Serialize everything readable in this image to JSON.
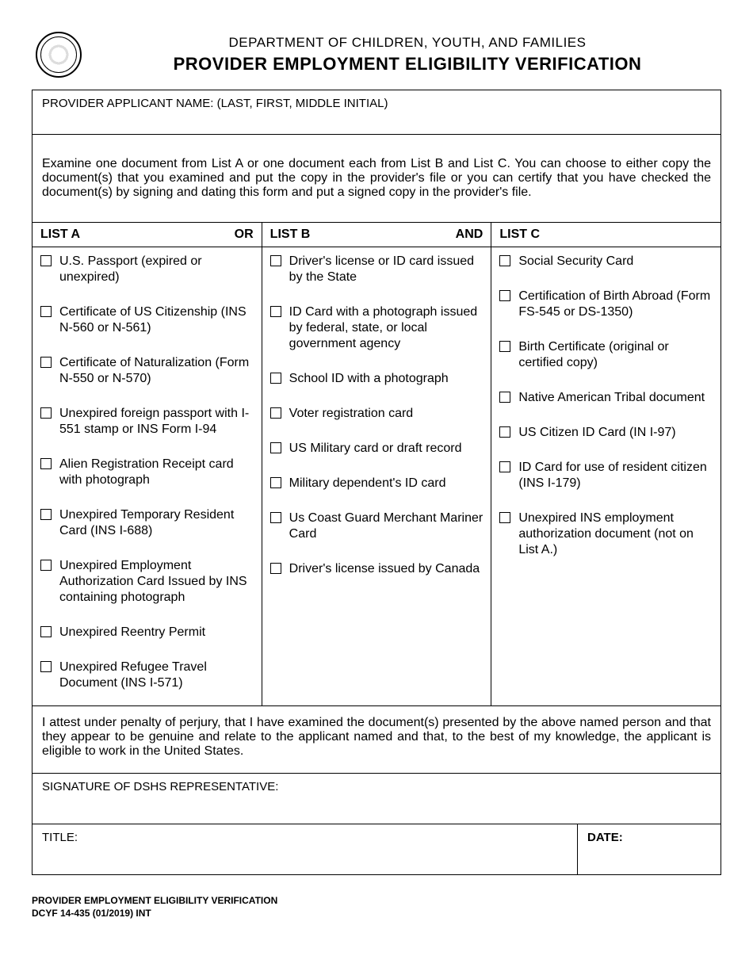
{
  "header": {
    "department": "DEPARTMENT OF CHILDREN, YOUTH, AND FAMILIES",
    "title": "PROVIDER EMPLOYMENT ELIGIBILITY VERIFICATION"
  },
  "applicant_label": "PROVIDER APPLICANT NAME: (LAST, FIRST, MIDDLE INITIAL)",
  "instructions": "Examine one document from List A or one document each from List B and List C.  You can choose to either copy the document(s) that you examined and put the copy in the provider's file or you can certify that you have checked the document(s) by signing and dating this form and put a signed copy in the provider's file.",
  "lists": {
    "a": {
      "header": "LIST A",
      "suffix": "OR",
      "items": [
        "U.S. Passport (expired or unexpired)",
        "Certificate of US Citizenship (INS N-560 or N-561)",
        "Certificate of Naturalization (Form N-550 or N-570)",
        "Unexpired foreign passport with I-551 stamp or INS Form I-94",
        "Alien Registration Receipt card with photograph",
        "Unexpired Temporary Resident Card (INS I-688)",
        "Unexpired Employment Authorization Card Issued by INS containing photograph",
        "Unexpired Reentry Permit",
        "Unexpired Refugee Travel Document (INS I-571)"
      ]
    },
    "b": {
      "header": "LIST B",
      "suffix": "AND",
      "items": [
        "Driver's license or ID card issued by the State",
        "ID Card with a photograph issued by federal, state, or local government agency",
        "School ID with a photograph",
        "Voter registration card",
        "US Military card or draft record",
        "Military dependent's ID card",
        "Us Coast Guard Merchant Mariner Card",
        "Driver's license issued by Canada"
      ]
    },
    "c": {
      "header": "LIST C",
      "suffix": "",
      "items": [
        "Social Security Card",
        "Certification of Birth Abroad (Form FS-545 or DS-1350)",
        "Birth Certificate (original or certified copy)",
        "Native American Tribal document",
        "US Citizen ID Card (IN I-97)",
        "ID Card for use of resident citizen (INS I-179)",
        "Unexpired INS employment authorization document (not on List A.)"
      ]
    }
  },
  "attestation": "I attest under penalty of perjury, that I have examined the document(s) presented by the above named person and that they appear to be genuine and relate to the applicant named and that, to the best of my knowledge, the applicant is eligible to work in the United States.",
  "signature_label": "SIGNATURE OF DSHS REPRESENTATIVE:",
  "title_label": "TITLE:",
  "date_label": "DATE:",
  "footer": {
    "line1": "PROVIDER EMPLOYMENT ELIGIBILITY VERIFICATION",
    "line2": "DCYF 14-435 (01/2019) INT"
  }
}
